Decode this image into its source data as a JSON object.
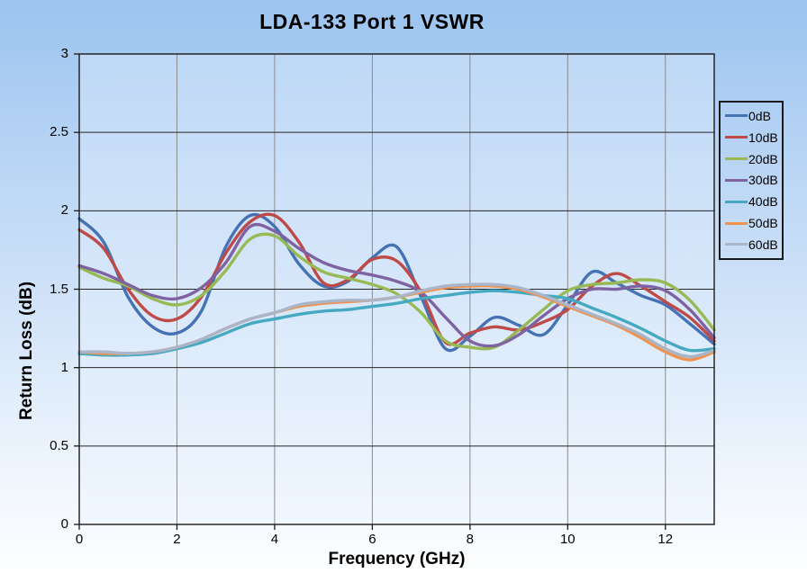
{
  "title": "LDA-133 Port 1 VSWR",
  "axes": {
    "x_title": "Frequency (GHz)",
    "y_title": "Return Loss (dB)"
  },
  "chart_data": {
    "type": "line",
    "title": "LDA-133 Port 1 VSWR",
    "xlabel": "Frequency (GHz)",
    "ylabel": "Return Loss (dB)",
    "xlim": [
      0,
      13
    ],
    "ylim": [
      0,
      3
    ],
    "x_ticks": [
      0,
      2,
      4,
      6,
      8,
      10,
      12
    ],
    "x_tick_labels": [
      "0",
      "2",
      "4",
      "6",
      "8",
      "10",
      "12"
    ],
    "y_ticks": [
      0,
      0.5,
      1,
      1.5,
      2,
      2.5,
      3
    ],
    "y_tick_labels": [
      "0",
      "0.5",
      "1",
      "1.5",
      "2",
      "2.5",
      "3"
    ],
    "grid": true,
    "legend_position": "right",
    "legend_labels": [
      "0dB",
      "10dB",
      "20dB",
      "30dB",
      "40dB",
      "50dB",
      "60dB"
    ],
    "x": [
      0,
      0.5,
      1,
      1.5,
      2,
      2.5,
      3,
      3.5,
      4,
      4.5,
      5,
      5.5,
      6,
      6.5,
      7,
      7.5,
      8,
      8.5,
      9,
      9.5,
      10,
      10.5,
      11,
      11.5,
      12,
      12.5,
      13
    ],
    "series": [
      {
        "name": "0dB",
        "color": "#4472b4",
        "values": [
          1.95,
          1.8,
          1.45,
          1.26,
          1.22,
          1.36,
          1.77,
          1.97,
          1.9,
          1.66,
          1.52,
          1.55,
          1.7,
          1.77,
          1.45,
          1.12,
          1.2,
          1.32,
          1.27,
          1.21,
          1.4,
          1.61,
          1.54,
          1.46,
          1.4,
          1.28,
          1.15
        ]
      },
      {
        "name": "10dB",
        "color": "#be4b48",
        "values": [
          1.88,
          1.76,
          1.5,
          1.33,
          1.31,
          1.45,
          1.73,
          1.93,
          1.97,
          1.8,
          1.54,
          1.56,
          1.69,
          1.68,
          1.48,
          1.16,
          1.22,
          1.26,
          1.24,
          1.29,
          1.37,
          1.52,
          1.6,
          1.52,
          1.42,
          1.32,
          1.17
        ]
      },
      {
        "name": "20dB",
        "color": "#98b954",
        "values": [
          1.64,
          1.57,
          1.52,
          1.44,
          1.4,
          1.46,
          1.62,
          1.82,
          1.84,
          1.71,
          1.61,
          1.57,
          1.53,
          1.47,
          1.35,
          1.17,
          1.13,
          1.13,
          1.24,
          1.37,
          1.49,
          1.53,
          1.54,
          1.56,
          1.54,
          1.43,
          1.24
        ]
      },
      {
        "name": "30dB",
        "color": "#7e62a1",
        "values": [
          1.65,
          1.6,
          1.53,
          1.46,
          1.44,
          1.51,
          1.67,
          1.9,
          1.87,
          1.76,
          1.67,
          1.62,
          1.59,
          1.55,
          1.48,
          1.32,
          1.17,
          1.14,
          1.21,
          1.33,
          1.44,
          1.5,
          1.5,
          1.52,
          1.49,
          1.37,
          1.19
        ]
      },
      {
        "name": "40dB",
        "color": "#45a9c2",
        "values": [
          1.09,
          1.08,
          1.08,
          1.09,
          1.12,
          1.16,
          1.22,
          1.28,
          1.31,
          1.34,
          1.36,
          1.37,
          1.39,
          1.41,
          1.44,
          1.46,
          1.48,
          1.49,
          1.48,
          1.46,
          1.44,
          1.38,
          1.32,
          1.25,
          1.17,
          1.11,
          1.12
        ]
      },
      {
        "name": "50dB",
        "color": "#ef9350",
        "values": [
          1.1,
          1.09,
          1.09,
          1.1,
          1.13,
          1.18,
          1.25,
          1.31,
          1.35,
          1.39,
          1.41,
          1.42,
          1.43,
          1.45,
          1.48,
          1.51,
          1.52,
          1.52,
          1.5,
          1.45,
          1.39,
          1.33,
          1.27,
          1.19,
          1.1,
          1.05,
          1.1
        ]
      },
      {
        "name": "60dB",
        "color": "#aab5c8",
        "values": [
          1.1,
          1.1,
          1.09,
          1.1,
          1.13,
          1.18,
          1.25,
          1.31,
          1.35,
          1.4,
          1.42,
          1.43,
          1.43,
          1.45,
          1.49,
          1.52,
          1.53,
          1.53,
          1.51,
          1.46,
          1.4,
          1.34,
          1.28,
          1.21,
          1.12,
          1.07,
          1.11
        ]
      }
    ],
    "colors": {
      "h_grid": "#262626",
      "v_grid": "#8c8c8c",
      "plot_border": "#1a1a1a",
      "plot_bg_top": "#bed8f6",
      "plot_bg_bottom": "#f1f7fe",
      "page_bg_top": "#9bc4ef",
      "page_bg_bottom": "#ffffff"
    }
  }
}
